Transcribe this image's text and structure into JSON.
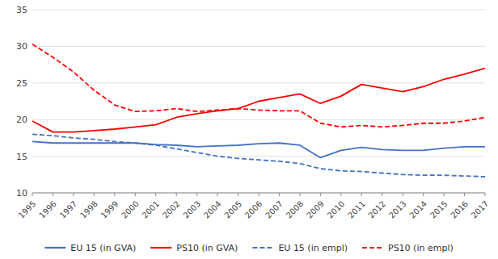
{
  "chart_data": {
    "type": "line",
    "x": [
      1995,
      1996,
      1997,
      1998,
      1999,
      2000,
      2001,
      2002,
      2003,
      2004,
      2005,
      2006,
      2007,
      2008,
      2009,
      2010,
      2011,
      2012,
      2013,
      2014,
      2015,
      2016,
      2017
    ],
    "series": [
      {
        "name": "EU 15 (in GVA)",
        "color": "#4472c4",
        "line_style": "solid",
        "values": [
          17.0,
          16.8,
          16.8,
          16.8,
          16.8,
          16.8,
          16.6,
          16.5,
          16.3,
          16.4,
          16.5,
          16.7,
          16.8,
          16.5,
          14.8,
          15.8,
          16.2,
          15.9,
          15.8,
          15.8,
          16.1,
          16.3,
          16.3
        ]
      },
      {
        "name": "PS10 (in GVA)",
        "color": "#ff0000",
        "line_style": "solid",
        "values": [
          19.8,
          18.3,
          18.3,
          18.5,
          18.7,
          19.0,
          19.3,
          20.3,
          20.8,
          21.2,
          21.5,
          22.5,
          23.0,
          23.5,
          22.2,
          23.2,
          24.8,
          24.3,
          23.8,
          24.5,
          25.5,
          26.2,
          27.0
        ]
      },
      {
        "name": "EU 15 (in empl)",
        "color": "#4472c4",
        "line_style": "dashed",
        "values": [
          18.0,
          17.8,
          17.5,
          17.3,
          17.0,
          16.8,
          16.5,
          16.0,
          15.5,
          15.0,
          14.7,
          14.5,
          14.3,
          14.0,
          13.3,
          13.0,
          12.9,
          12.7,
          12.5,
          12.4,
          12.4,
          12.3,
          12.2
        ]
      },
      {
        "name": "PS10 (in empl)",
        "color": "#ff0000",
        "line_style": "dashed",
        "values": [
          30.3,
          28.5,
          26.5,
          24.0,
          22.0,
          21.1,
          21.2,
          21.5,
          21.1,
          21.3,
          21.5,
          21.3,
          21.2,
          21.2,
          19.5,
          19.0,
          19.2,
          19.0,
          19.2,
          19.5,
          19.5,
          19.8,
          20.3
        ]
      }
    ],
    "xlim": [
      1995,
      2017
    ],
    "xticks": [
      1995,
      1996,
      1997,
      1998,
      1999,
      2000,
      2001,
      2002,
      2003,
      2004,
      2005,
      2006,
      2007,
      2008,
      2009,
      2010,
      2011,
      2012,
      2013,
      2014,
      2015,
      2016,
      2017
    ],
    "ylim": [
      10,
      35
    ],
    "yticks": [
      10,
      15,
      20,
      25,
      30,
      35
    ],
    "grid": true,
    "legend": "bottom"
  }
}
